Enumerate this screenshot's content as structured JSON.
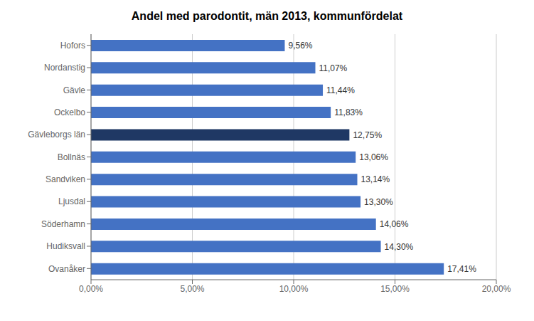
{
  "chart_data": {
    "type": "bar",
    "orientation": "horizontal",
    "title": "Andel med parodontit, män 2013, kommunfördelat",
    "categories": [
      "Ovanåker",
      "Hudiksvall",
      "Söderhamn",
      "Ljusdal",
      "Sandviken",
      "Bollnäs",
      "Gävleborgs län",
      "Ockelbo",
      "Gävle",
      "Nordanstig",
      "Hofors"
    ],
    "values": [
      0.1741,
      0.143,
      0.1406,
      0.133,
      0.1314,
      0.1306,
      0.1275,
      0.1183,
      0.1144,
      0.1107,
      0.0956
    ],
    "value_labels": [
      "17,41%",
      "14,30%",
      "14,06%",
      "13,30%",
      "13,14%",
      "13,06%",
      "12,75%",
      "11,83%",
      "11,44%",
      "11,07%",
      "9,56%"
    ],
    "colors": [
      "#4472C4",
      "#4472C4",
      "#4472C4",
      "#4472C4",
      "#4472C4",
      "#4472C4",
      "#1F3864",
      "#4472C4",
      "#4472C4",
      "#4472C4",
      "#4472C4"
    ],
    "xlim": [
      0,
      0.2
    ],
    "xticks": [
      {
        "value": 0.0,
        "label": "0,00%"
      },
      {
        "value": 0.05,
        "label": "5,00%"
      },
      {
        "value": 0.1,
        "label": "10,00%"
      },
      {
        "value": 0.15,
        "label": "15,00%"
      },
      {
        "value": 0.2,
        "label": "20,00%"
      }
    ],
    "grid": true,
    "data_labels": true
  }
}
